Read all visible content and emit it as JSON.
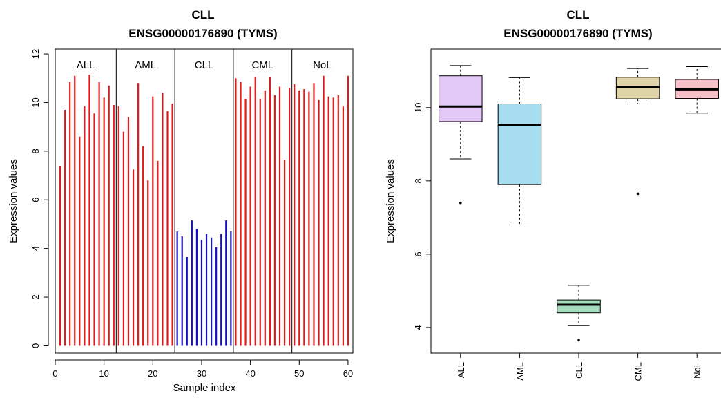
{
  "colors": {
    "high_bar": "#e31a1c",
    "low_bar": "#1010c8",
    "box_ALL": "#e3c8f7",
    "box_AML": "#a6def0",
    "box_CLL": "#a8dcbf",
    "box_CML": "#e1d4a8",
    "box_NoL": "#f7bfc8"
  },
  "chart_data": [
    {
      "type": "bar",
      "title_line1": "CLL",
      "title_line2": "ENSG00000176890 (TYMS)",
      "xlabel": "Sample index",
      "ylabel": "Expression values",
      "xlim": [
        0,
        61
      ],
      "ylim": [
        -0.3,
        12.2
      ],
      "xticks": [
        0,
        10,
        20,
        30,
        40,
        50,
        60
      ],
      "yticks": [
        0,
        2,
        4,
        6,
        8,
        10,
        12
      ],
      "group_boundaries": [
        12.5,
        24.5,
        36.5,
        48.5
      ],
      "groups": [
        {
          "name": "ALL",
          "start": 1,
          "end": 12
        },
        {
          "name": "AML",
          "start": 13,
          "end": 24
        },
        {
          "name": "CLL",
          "start": 25,
          "end": 36
        },
        {
          "name": "CML",
          "start": 37,
          "end": 48
        },
        {
          "name": "NoL",
          "start": 49,
          "end": 60
        }
      ],
      "highlight_group": "CLL",
      "x": [
        1,
        2,
        3,
        4,
        5,
        6,
        7,
        8,
        9,
        10,
        11,
        12,
        13,
        14,
        15,
        16,
        17,
        18,
        19,
        20,
        21,
        22,
        23,
        24,
        25,
        26,
        27,
        28,
        29,
        30,
        31,
        32,
        33,
        34,
        35,
        36,
        37,
        38,
        39,
        40,
        41,
        42,
        43,
        44,
        45,
        46,
        47,
        48,
        49,
        50,
        51,
        52,
        53,
        54,
        55,
        56,
        57,
        58,
        59,
        60
      ],
      "values": [
        7.4,
        9.7,
        10.85,
        11.1,
        8.6,
        9.85,
        11.15,
        9.55,
        10.85,
        10.2,
        10.7,
        9.9,
        9.85,
        8.8,
        9.4,
        7.25,
        10.8,
        8.2,
        6.8,
        10.25,
        7.6,
        10.4,
        9.65,
        9.95,
        4.7,
        4.5,
        3.65,
        5.15,
        4.8,
        4.35,
        4.6,
        4.45,
        4.05,
        4.6,
        5.15,
        4.7,
        11.0,
        10.85,
        10.15,
        10.65,
        11.05,
        10.15,
        10.5,
        11.05,
        10.3,
        10.65,
        7.65,
        10.6,
        10.75,
        10.5,
        10.55,
        10.45,
        10.8,
        10.1,
        11.1,
        10.25,
        10.2,
        10.3,
        9.85,
        11.1
      ]
    },
    {
      "type": "box",
      "title_line1": "CLL",
      "title_line2": "ENSG00000176890 (TYMS)",
      "ylabel": "Expression values",
      "ylim": [
        3.3,
        11.6
      ],
      "yticks": [
        4,
        6,
        8,
        10
      ],
      "categories": [
        "ALL",
        "AML",
        "CLL",
        "CML",
        "NoL"
      ],
      "boxes": [
        {
          "name": "ALL",
          "whisker_low": 8.6,
          "q1": 9.62,
          "median": 10.03,
          "q3": 10.87,
          "whisker_high": 11.15,
          "outliers": [
            7.4
          ]
        },
        {
          "name": "AML",
          "whisker_low": 6.8,
          "q1": 7.9,
          "median": 9.53,
          "q3": 10.1,
          "whisker_high": 10.82,
          "outliers": []
        },
        {
          "name": "CLL",
          "whisker_low": 4.05,
          "q1": 4.4,
          "median": 4.62,
          "q3": 4.75,
          "whisker_high": 5.15,
          "outliers": [
            3.65
          ]
        },
        {
          "name": "CML",
          "whisker_low": 10.1,
          "q1": 10.24,
          "median": 10.57,
          "q3": 10.83,
          "whisker_high": 11.07,
          "outliers": [
            7.65
          ]
        },
        {
          "name": "NoL",
          "whisker_low": 9.85,
          "q1": 10.25,
          "median": 10.5,
          "q3": 10.77,
          "whisker_high": 11.12,
          "outliers": []
        }
      ]
    }
  ]
}
